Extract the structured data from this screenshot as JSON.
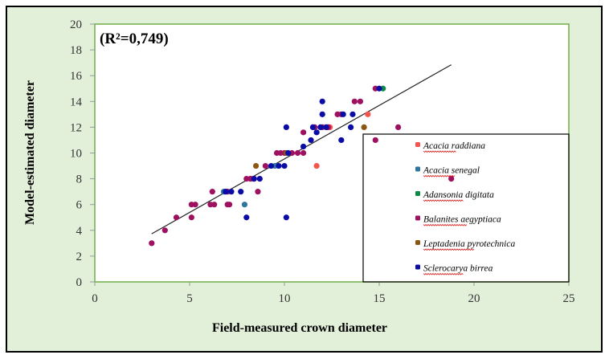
{
  "chart_data": {
    "type": "scatter",
    "title": "",
    "annotation": "(R²=0,749)",
    "xlabel": "Field-measured  crown diameter",
    "ylabel": "Model-estimated diameter",
    "xlim": [
      0,
      25
    ],
    "ylim": [
      0,
      20
    ],
    "xticks": [
      "0",
      "5",
      "10",
      "15",
      "20",
      "25"
    ],
    "yticks": [
      "0",
      "2",
      "4",
      "6",
      "8",
      "10",
      "12",
      "14",
      "16",
      "18",
      "20"
    ],
    "grid": false,
    "legend_position": "bottom-right",
    "trendline": {
      "slope": 0.83,
      "intercept": 1.24,
      "x_range": [
        3,
        18.8
      ]
    },
    "series": [
      {
        "name": "Acacia raddiana",
        "color": "#f4544d",
        "points": [
          [
            11.7,
            9
          ],
          [
            14.4,
            13
          ],
          [
            12.3,
            12
          ],
          [
            8.3,
            8
          ],
          [
            12.4,
            12
          ]
        ]
      },
      {
        "name": "Acacia senegal",
        "color": "#2e75a0",
        "points": [
          [
            6.8,
            7
          ],
          [
            7.9,
            6
          ],
          [
            9.5,
            9
          ]
        ]
      },
      {
        "name": "Adansonia digitata",
        "color": "#0a8a45",
        "points": [
          [
            15.2,
            15
          ]
        ]
      },
      {
        "name": "Balanites aegyptiaca",
        "color": "#9e1060",
        "points": [
          [
            3,
            3
          ],
          [
            3.7,
            4
          ],
          [
            4.3,
            5
          ],
          [
            5.1,
            5
          ],
          [
            5.1,
            6
          ],
          [
            5.3,
            6
          ],
          [
            6.1,
            6
          ],
          [
            6.3,
            6
          ],
          [
            6.2,
            7
          ],
          [
            7,
            6
          ],
          [
            7.1,
            6
          ],
          [
            7,
            7
          ],
          [
            8,
            8
          ],
          [
            8.2,
            8
          ],
          [
            8.4,
            8
          ],
          [
            8.6,
            7
          ],
          [
            9,
            9
          ],
          [
            9.6,
            10
          ],
          [
            9.8,
            10
          ],
          [
            10,
            10
          ],
          [
            10.4,
            10
          ],
          [
            10.7,
            10
          ],
          [
            11,
            10
          ],
          [
            11,
            11.6
          ],
          [
            11.6,
            12
          ],
          [
            12,
            12
          ],
          [
            12.3,
            12
          ],
          [
            12.8,
            13
          ],
          [
            13,
            13
          ],
          [
            13.7,
            14
          ],
          [
            14,
            14
          ],
          [
            14.8,
            15
          ],
          [
            16,
            12
          ],
          [
            14.8,
            11
          ],
          [
            18.8,
            8
          ]
        ]
      },
      {
        "name": "Leptadenia pyrotechnica",
        "color": "#8b5512",
        "points": [
          [
            8.5,
            9
          ],
          [
            10.1,
            10
          ],
          [
            14.2,
            12
          ]
        ]
      },
      {
        "name": "Sclerocarya birrea",
        "color": "#0b0ba6",
        "points": [
          [
            8,
            5
          ],
          [
            10.1,
            5
          ],
          [
            6.9,
            7
          ],
          [
            7.2,
            7
          ],
          [
            7.7,
            7
          ],
          [
            8.7,
            8
          ],
          [
            9.3,
            9
          ],
          [
            9.7,
            9
          ],
          [
            10,
            9
          ],
          [
            10.1,
            12
          ],
          [
            11,
            10.5
          ],
          [
            11.4,
            11
          ],
          [
            11.5,
            12
          ],
          [
            11.7,
            11.6
          ],
          [
            11.9,
            12
          ],
          [
            12,
            14
          ],
          [
            12,
            13
          ],
          [
            12.2,
            12
          ],
          [
            13,
            11
          ],
          [
            13.1,
            13
          ],
          [
            13.5,
            12
          ],
          [
            13.6,
            13
          ],
          [
            15,
            15
          ],
          [
            8.4,
            8
          ],
          [
            10.2,
            10
          ]
        ]
      }
    ]
  }
}
